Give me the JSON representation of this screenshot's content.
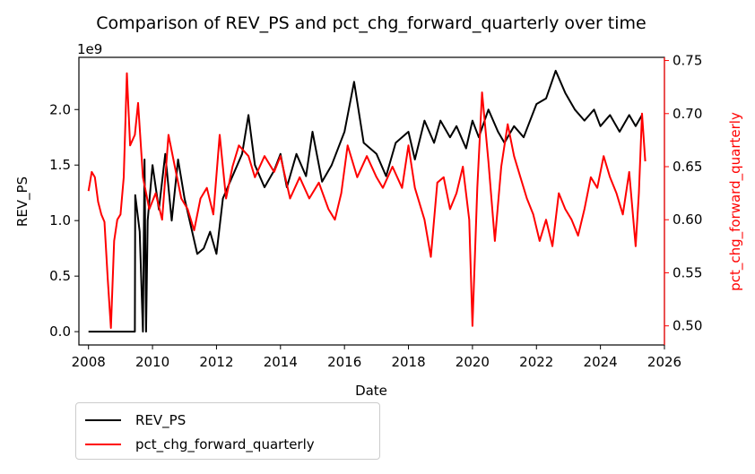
{
  "chart_data": {
    "type": "line",
    "title": "Comparison of REV_PS and pct_chg_forward_quarterly over time",
    "xlabel": "Date",
    "ylabel_left": "REV_PS",
    "ylabel_right": "pct_chg_forward_quarterly",
    "left_offset_text": "1e9",
    "xlim": [
      2007.7,
      2026.0
    ],
    "ylim_left": [
      -0.12,
      2.47
    ],
    "ylim_right": [
      0.482,
      0.753
    ],
    "x_ticks": [
      2008,
      2010,
      2012,
      2014,
      2016,
      2018,
      2020,
      2022,
      2024,
      2026
    ],
    "y_ticks_left": [
      0.0,
      0.5,
      1.0,
      1.5,
      2.0
    ],
    "y_ticks_left_labels": [
      "0.0",
      "0.5",
      "1.0",
      "1.5",
      "2.0"
    ],
    "y_ticks_right": [
      0.5,
      0.55,
      0.6,
      0.65,
      0.7,
      0.75
    ],
    "y_ticks_right_labels": [
      "0.50",
      "0.55",
      "0.60",
      "0.65",
      "0.70",
      "0.75"
    ],
    "legend_position": "below-left",
    "series": [
      {
        "name": "REV_PS",
        "axis": "left",
        "color": "#000000",
        "unit": "1e9",
        "points": [
          [
            2008.0,
            0.0
          ],
          [
            2009.45,
            0.0
          ],
          [
            2009.46,
            1.23
          ],
          [
            2009.6,
            0.9
          ],
          [
            2009.7,
            0.0
          ],
          [
            2009.75,
            1.55
          ],
          [
            2009.8,
            0.0
          ],
          [
            2009.85,
            1.0
          ],
          [
            2010.0,
            1.5
          ],
          [
            2010.2,
            1.1
          ],
          [
            2010.4,
            1.6
          ],
          [
            2010.6,
            1.0
          ],
          [
            2010.8,
            1.55
          ],
          [
            2011.0,
            1.2
          ],
          [
            2011.2,
            0.95
          ],
          [
            2011.4,
            0.7
          ],
          [
            2011.6,
            0.75
          ],
          [
            2011.8,
            0.9
          ],
          [
            2012.0,
            0.7
          ],
          [
            2012.2,
            1.2
          ],
          [
            2012.5,
            1.4
          ],
          [
            2012.8,
            1.6
          ],
          [
            2013.0,
            1.95
          ],
          [
            2013.2,
            1.5
          ],
          [
            2013.5,
            1.3
          ],
          [
            2013.8,
            1.45
          ],
          [
            2014.0,
            1.6
          ],
          [
            2014.2,
            1.3
          ],
          [
            2014.5,
            1.6
          ],
          [
            2014.8,
            1.4
          ],
          [
            2015.0,
            1.8
          ],
          [
            2015.3,
            1.35
          ],
          [
            2015.6,
            1.5
          ],
          [
            2016.0,
            1.8
          ],
          [
            2016.3,
            2.25
          ],
          [
            2016.6,
            1.7
          ],
          [
            2017.0,
            1.6
          ],
          [
            2017.3,
            1.4
          ],
          [
            2017.6,
            1.7
          ],
          [
            2018.0,
            1.8
          ],
          [
            2018.2,
            1.55
          ],
          [
            2018.5,
            1.9
          ],
          [
            2018.8,
            1.7
          ],
          [
            2019.0,
            1.9
          ],
          [
            2019.3,
            1.75
          ],
          [
            2019.5,
            1.85
          ],
          [
            2019.8,
            1.65
          ],
          [
            2020.0,
            1.9
          ],
          [
            2020.2,
            1.75
          ],
          [
            2020.5,
            2.0
          ],
          [
            2020.8,
            1.8
          ],
          [
            2021.0,
            1.7
          ],
          [
            2021.3,
            1.85
          ],
          [
            2021.6,
            1.75
          ],
          [
            2022.0,
            2.05
          ],
          [
            2022.3,
            2.1
          ],
          [
            2022.6,
            2.35
          ],
          [
            2022.9,
            2.15
          ],
          [
            2023.2,
            2.0
          ],
          [
            2023.5,
            1.9
          ],
          [
            2023.8,
            2.0
          ],
          [
            2024.0,
            1.85
          ],
          [
            2024.3,
            1.95
          ],
          [
            2024.6,
            1.8
          ],
          [
            2024.9,
            1.95
          ],
          [
            2025.1,
            1.85
          ],
          [
            2025.3,
            1.95
          ]
        ]
      },
      {
        "name": "pct_chg_forward_quarterly",
        "axis": "right",
        "color": "#ff0000",
        "points": [
          [
            2008.0,
            0.627
          ],
          [
            2008.1,
            0.645
          ],
          [
            2008.2,
            0.64
          ],
          [
            2008.3,
            0.617
          ],
          [
            2008.4,
            0.605
          ],
          [
            2008.5,
            0.598
          ],
          [
            2008.6,
            0.545
          ],
          [
            2008.7,
            0.498
          ],
          [
            2008.8,
            0.58
          ],
          [
            2008.9,
            0.6
          ],
          [
            2009.0,
            0.605
          ],
          [
            2009.1,
            0.64
          ],
          [
            2009.2,
            0.738
          ],
          [
            2009.3,
            0.67
          ],
          [
            2009.45,
            0.68
          ],
          [
            2009.55,
            0.71
          ],
          [
            2009.7,
            0.64
          ],
          [
            2009.9,
            0.61
          ],
          [
            2010.1,
            0.625
          ],
          [
            2010.3,
            0.6
          ],
          [
            2010.5,
            0.68
          ],
          [
            2010.7,
            0.65
          ],
          [
            2010.9,
            0.62
          ],
          [
            2011.1,
            0.61
          ],
          [
            2011.3,
            0.59
          ],
          [
            2011.5,
            0.62
          ],
          [
            2011.7,
            0.63
          ],
          [
            2011.9,
            0.605
          ],
          [
            2012.1,
            0.68
          ],
          [
            2012.3,
            0.62
          ],
          [
            2012.5,
            0.65
          ],
          [
            2012.7,
            0.67
          ],
          [
            2013.0,
            0.66
          ],
          [
            2013.2,
            0.64
          ],
          [
            2013.5,
            0.66
          ],
          [
            2013.8,
            0.645
          ],
          [
            2014.0,
            0.66
          ],
          [
            2014.3,
            0.62
          ],
          [
            2014.6,
            0.64
          ],
          [
            2014.9,
            0.62
          ],
          [
            2015.2,
            0.635
          ],
          [
            2015.5,
            0.61
          ],
          [
            2015.7,
            0.6
          ],
          [
            2015.9,
            0.625
          ],
          [
            2016.1,
            0.67
          ],
          [
            2016.4,
            0.64
          ],
          [
            2016.7,
            0.66
          ],
          [
            2017.0,
            0.64
          ],
          [
            2017.2,
            0.63
          ],
          [
            2017.5,
            0.65
          ],
          [
            2017.8,
            0.63
          ],
          [
            2018.0,
            0.67
          ],
          [
            2018.2,
            0.63
          ],
          [
            2018.5,
            0.6
          ],
          [
            2018.7,
            0.565
          ],
          [
            2018.9,
            0.635
          ],
          [
            2019.1,
            0.64
          ],
          [
            2019.3,
            0.61
          ],
          [
            2019.5,
            0.625
          ],
          [
            2019.7,
            0.65
          ],
          [
            2019.9,
            0.6
          ],
          [
            2020.0,
            0.5
          ],
          [
            2020.15,
            0.63
          ],
          [
            2020.3,
            0.72
          ],
          [
            2020.5,
            0.655
          ],
          [
            2020.7,
            0.58
          ],
          [
            2020.9,
            0.65
          ],
          [
            2021.1,
            0.69
          ],
          [
            2021.3,
            0.66
          ],
          [
            2021.5,
            0.64
          ],
          [
            2021.7,
            0.62
          ],
          [
            2021.9,
            0.605
          ],
          [
            2022.1,
            0.58
          ],
          [
            2022.3,
            0.6
          ],
          [
            2022.5,
            0.575
          ],
          [
            2022.7,
            0.625
          ],
          [
            2022.9,
            0.61
          ],
          [
            2023.1,
            0.6
          ],
          [
            2023.3,
            0.585
          ],
          [
            2023.5,
            0.61
          ],
          [
            2023.7,
            0.64
          ],
          [
            2023.9,
            0.63
          ],
          [
            2024.1,
            0.66
          ],
          [
            2024.3,
            0.64
          ],
          [
            2024.5,
            0.625
          ],
          [
            2024.7,
            0.605
          ],
          [
            2024.9,
            0.645
          ],
          [
            2025.1,
            0.575
          ],
          [
            2025.2,
            0.625
          ],
          [
            2025.3,
            0.7
          ],
          [
            2025.4,
            0.655
          ]
        ]
      }
    ]
  },
  "legend": {
    "items": [
      {
        "label": "REV_PS",
        "color": "#000000"
      },
      {
        "label": "pct_chg_forward_quarterly",
        "color": "#ff0000"
      }
    ]
  }
}
